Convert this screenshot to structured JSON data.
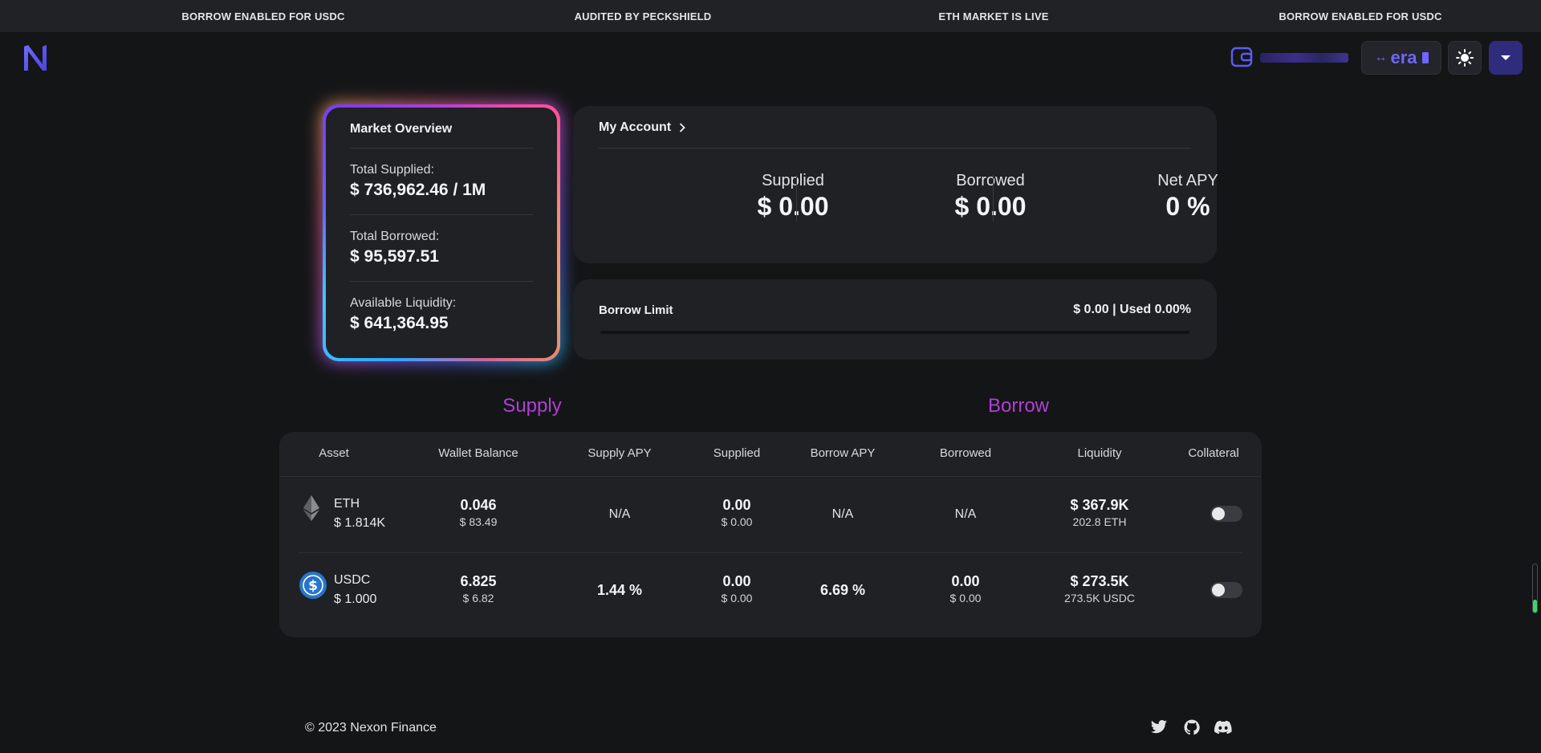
{
  "ticker": [
    "BORROW ENABLED FOR USDC",
    "AUDITED BY PECKSHIELD",
    "ETH MARKET IS LIVE",
    "BORROW ENABLED FOR USDC"
  ],
  "header": {
    "logo_icon": "nexon-logo-icon",
    "network_label": "era",
    "theme_icon": "sun-icon",
    "menu_icon": "caret-down-icon"
  },
  "market_overview": {
    "title": "Market Overview",
    "total_supplied_label": "Total Supplied:",
    "total_supplied_value": "$ 736,962.46 / 1M",
    "total_borrowed_label": "Total Borrowed:",
    "total_borrowed_value": "$ 95,597.51",
    "available_liquidity_label": "Available Liquidity:",
    "available_liquidity_value": "$ 641,364.95"
  },
  "my_account": {
    "title": "My Account",
    "supplied_label": "Supplied",
    "supplied_value": "$ 0.00",
    "borrowed_label": "Borrowed",
    "borrowed_value": "$ 0.00",
    "net_apy_label": "Net APY",
    "net_apy_value": "0 %"
  },
  "borrow_limit": {
    "label": "Borrow Limit",
    "value": "$ 0.00 | Used 0.00%",
    "used_fraction": 0
  },
  "sections": {
    "supply": "Supply",
    "borrow": "Borrow"
  },
  "table": {
    "headers": [
      "Asset",
      "Wallet Balance",
      "Supply APY",
      "Supplied",
      "Borrow APY",
      "Borrowed",
      "Liquidity",
      "Collateral"
    ],
    "rows": [
      {
        "icon": "eth-icon",
        "asset": "ETH",
        "price": "$ 1.814K",
        "wallet_balance": "0.046",
        "wallet_balance_usd": "$ 83.49",
        "supply_apy": "N/A",
        "supplied": "0.00",
        "supplied_usd": "$ 0.00",
        "borrow_apy": "N/A",
        "borrowed": "N/A",
        "liquidity": "$ 367.9K",
        "liquidity_sub": "202.8 ETH",
        "collateral": false
      },
      {
        "icon": "usdc-icon",
        "asset": "USDC",
        "price": "$ 1.000",
        "wallet_balance": "6.825",
        "wallet_balance_usd": "$ 6.82",
        "supply_apy": "1.44 %",
        "supplied": "0.00",
        "supplied_usd": "$ 0.00",
        "borrow_apy": "6.69 %",
        "borrowed": "0.00",
        "borrowed_usd": "$ 0.00",
        "liquidity": "$ 273.5K",
        "liquidity_sub": "273.5K USDC",
        "collateral": false
      }
    ]
  },
  "footer": {
    "copyright": "© 2023 Nexon Finance",
    "social_icons": [
      "twitter-icon",
      "github-icon",
      "discord-icon"
    ]
  },
  "colors": {
    "background": "#141517",
    "card": "#1f2124",
    "accent": "#5e5cf7",
    "section_title": "#b13fd6"
  }
}
